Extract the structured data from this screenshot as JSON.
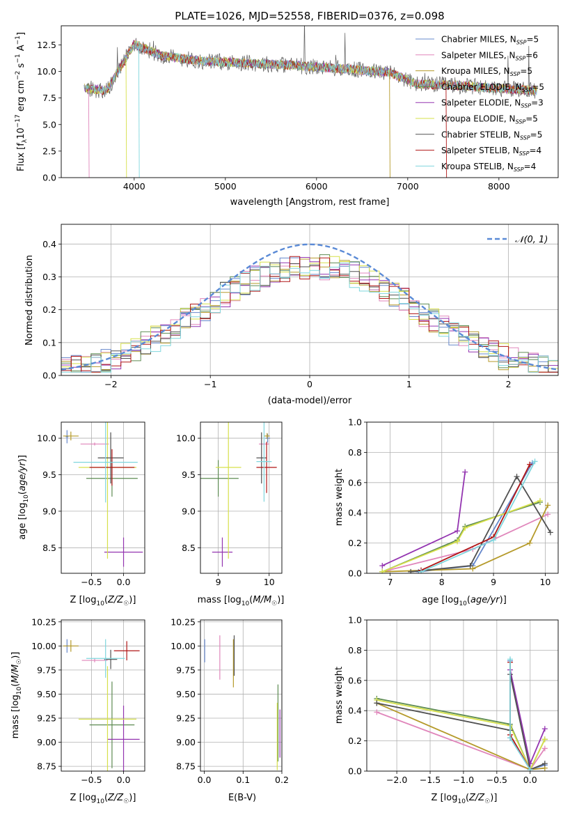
{
  "colors": [
    "#6688cc",
    "#e086bb",
    "#b59a2a",
    "#5d8b52",
    "#9334b0",
    "#d6e04a",
    "#505050",
    "#b01515",
    "#7fd6dd"
  ],
  "chart_data": [
    {
      "id": "spectrum",
      "type": "line",
      "title": "PLATE=1026, MJD=52558, FIBERID=0376, z=0.098",
      "xlabel": "wavelength [Angstrom, rest frame]",
      "ylabel": "Flux [f_λ 10^-17 erg cm^-2 s^-1 A^-1]",
      "xlim": [
        3200,
        8650
      ],
      "ylim": [
        0,
        14.3
      ],
      "xticks": [
        4000,
        5000,
        6000,
        7000,
        8000
      ],
      "yticks": [
        0.0,
        2.5,
        5.0,
        7.5,
        10.0,
        12.5
      ],
      "legend": [
        "Chabrier MILES, N_SSP=5",
        "Salpeter MILES, N_SSP=6",
        "Kroupa MILES, N_SSP=5",
        "Chabrier ELODIE, N_SSP=5",
        "Salpeter ELODIE, N_SSP=3",
        "Kroupa ELODIE, N_SSP=5",
        "Chabrier STELIB, N_SSP=5",
        "Salpeter STELIB, N_SSP=4",
        "Kroupa STELIB, N_SSP=4"
      ],
      "continuum": [
        [
          3450,
          8.4
        ],
        [
          3700,
          8.2
        ],
        [
          4000,
          12.6
        ],
        [
          4300,
          11.5
        ],
        [
          4700,
          11.0
        ],
        [
          5200,
          10.8
        ],
        [
          5700,
          10.6
        ],
        [
          6200,
          10.3
        ],
        [
          6800,
          9.9
        ],
        [
          7100,
          8.8
        ],
        [
          7500,
          8.7
        ],
        [
          8000,
          8.4
        ],
        [
          8400,
          8.2
        ]
      ]
    },
    {
      "id": "residuals",
      "type": "line",
      "xlabel": "(data-model)/error",
      "ylabel": "Normed distribution",
      "xlim": [
        -2.5,
        2.5
      ],
      "ylim": [
        0,
        0.46
      ],
      "xticks": [
        -2,
        -1,
        0,
        1,
        2
      ],
      "yticks": [
        0.0,
        0.1,
        0.2,
        0.3,
        0.4
      ],
      "legend": [
        "N(0,1)"
      ],
      "gaussian": {
        "mu": 0,
        "sigma": 1
      }
    },
    {
      "id": "age-vs-Z",
      "type": "scatter",
      "xlabel": "Z [log10(Z/Z☉)]",
      "ylabel": "age  [log10(age/yr)]",
      "xlim": [
        -0.97,
        0.33
      ],
      "ylim": [
        8.15,
        10.22
      ],
      "xticks": [
        -0.5,
        0.0
      ],
      "yticks": [
        8.5,
        9.0,
        9.5,
        10.0
      ],
      "points": [
        {
          "x": -0.88,
          "y": 10.02,
          "ex": 0.02,
          "ey": 0.09
        },
        {
          "x": -0.45,
          "y": 9.92,
          "ex": 0.22,
          "ey": 0.02
        },
        {
          "x": -0.82,
          "y": 10.03,
          "ex": 0.12,
          "ey": 0.06
        },
        {
          "x": -0.18,
          "y": 9.45,
          "ex": 0.4,
          "ey": 0.25
        },
        {
          "x": 0.0,
          "y": 8.44,
          "ex": 0.3,
          "ey": 0.2
        },
        {
          "x": -0.25,
          "y": 9.6,
          "ex": 0.45,
          "ey": 1.25
        },
        {
          "x": -0.2,
          "y": 9.73,
          "ex": 0.2,
          "ey": 0.35
        },
        {
          "x": -0.18,
          "y": 9.6,
          "ex": 0.35,
          "ey": 0.25
        },
        {
          "x": -0.28,
          "y": 9.67,
          "ex": 0.5,
          "ey": 0.55
        }
      ]
    },
    {
      "id": "age-vs-mass",
      "type": "scatter",
      "xlabel": "mass [log10(M/M☉)]",
      "ylabel": "",
      "xlim": [
        8.65,
        10.25
      ],
      "ylim": [
        8.15,
        10.22
      ],
      "xticks": [
        9,
        10
      ],
      "yticks": [
        8.5,
        9.0,
        9.5,
        10.0
      ],
      "points": [
        {
          "x": 9.97,
          "y": 10.0,
          "ex": 0.05,
          "ey": 0.06
        },
        {
          "x": 9.9,
          "y": 9.92,
          "ex": 0.1,
          "ey": 0.02
        },
        {
          "x": 9.96,
          "y": 10.03,
          "ex": 0.05,
          "ey": 0.04
        },
        {
          "x": 9.0,
          "y": 9.45,
          "ex": 0.4,
          "ey": 0.25
        },
        {
          "x": 9.08,
          "y": 8.44,
          "ex": 0.2,
          "ey": 0.2
        },
        {
          "x": 9.2,
          "y": 9.6,
          "ex": 0.25,
          "ey": 1.25
        },
        {
          "x": 9.85,
          "y": 9.73,
          "ex": 0.1,
          "ey": 0.35
        },
        {
          "x": 9.95,
          "y": 9.6,
          "ex": 0.2,
          "ey": 0.35
        },
        {
          "x": 9.9,
          "y": 9.68,
          "ex": 0.15,
          "ey": 0.55
        }
      ]
    },
    {
      "id": "massweight-vs-age",
      "type": "line",
      "xlabel": "age  [log10(age/yr)]",
      "ylabel": "mass weight",
      "xlim": [
        6.55,
        10.25
      ],
      "ylim": [
        0,
        1.0
      ],
      "xticks": [
        7,
        8,
        9,
        10
      ],
      "yticks": [
        0.0,
        0.2,
        0.4,
        0.6,
        0.8,
        1.0
      ],
      "series": [
        {
          "x": [
            7.55,
            8.6,
            9.75
          ],
          "y": [
            0.01,
            0.05,
            0.73
          ]
        },
        {
          "x": [
            6.85,
            8.6,
            10.05
          ],
          "y": [
            0.01,
            0.16,
            0.39
          ]
        },
        {
          "x": [
            6.85,
            8.6,
            9.7,
            10.05
          ],
          "y": [
            0.01,
            0.03,
            0.2,
            0.45
          ]
        },
        {
          "x": [
            6.85,
            8.3,
            8.45,
            9.9
          ],
          "y": [
            0.01,
            0.22,
            0.31,
            0.47
          ]
        },
        {
          "x": [
            6.85,
            8.3,
            8.45
          ],
          "y": [
            0.05,
            0.28,
            0.67
          ]
        },
        {
          "x": [
            6.85,
            8.3,
            8.45,
            9.9
          ],
          "y": [
            0.01,
            0.21,
            0.3,
            0.48
          ]
        },
        {
          "x": [
            7.4,
            8.55,
            9.45,
            10.1
          ],
          "y": [
            0.01,
            0.05,
            0.64,
            0.27
          ]
        },
        {
          "x": [
            7.6,
            9.0,
            9.7
          ],
          "y": [
            0.02,
            0.24,
            0.72
          ]
        },
        {
          "x": [
            7.6,
            9.0,
            9.8
          ],
          "y": [
            0.01,
            0.22,
            0.74
          ]
        }
      ]
    },
    {
      "id": "mass-vs-Z",
      "type": "scatter",
      "xlabel": "Z [log10(Z/Z☉)]",
      "ylabel": "mass [log10(M/M☉)]",
      "xlim": [
        -0.97,
        0.33
      ],
      "ylim": [
        8.7,
        10.27
      ],
      "xticks": [
        -0.5,
        0.0
      ],
      "yticks": [
        8.75,
        9.0,
        9.25,
        9.5,
        9.75,
        10.0,
        10.25
      ],
      "points": [
        {
          "x": -0.88,
          "y": 10.0,
          "ex": 0.02,
          "ey": 0.07
        },
        {
          "x": -0.45,
          "y": 9.85,
          "ex": 0.2,
          "ey": 0.02
        },
        {
          "x": -0.82,
          "y": 10.0,
          "ex": 0.12,
          "ey": 0.06
        },
        {
          "x": -0.18,
          "y": 9.18,
          "ex": 0.35,
          "ey": 0.45
        },
        {
          "x": 0.0,
          "y": 9.03,
          "ex": 0.25,
          "ey": 0.35
        },
        {
          "x": -0.25,
          "y": 9.24,
          "ex": 0.45,
          "ey": 0.55
        },
        {
          "x": -0.2,
          "y": 9.86,
          "ex": 0.1,
          "ey": 0.1
        },
        {
          "x": 0.05,
          "y": 9.95,
          "ex": 0.2,
          "ey": 0.1
        },
        {
          "x": -0.28,
          "y": 9.87,
          "ex": 0.3,
          "ey": 0.2
        }
      ]
    },
    {
      "id": "mass-vs-ebv",
      "type": "scatter",
      "xlabel": "E(B-V)",
      "ylabel": "",
      "xlim": [
        -0.01,
        0.2
      ],
      "ylim": [
        8.7,
        10.27
      ],
      "xticks": [
        0.0,
        0.1,
        0.2
      ],
      "yticks": [
        8.75,
        9.0,
        9.25,
        9.5,
        9.75,
        10.0,
        10.25
      ],
      "points": [
        {
          "x": 0.001,
          "y": 9.95,
          "ex": 0,
          "ey": 0.12
        },
        {
          "x": 0.04,
          "y": 9.88,
          "ex": 0,
          "ey": 0.23
        },
        {
          "x": 0.075,
          "y": 9.82,
          "ex": 0,
          "ey": 0.25
        },
        {
          "x": 0.19,
          "y": 9.2,
          "ex": 0,
          "ey": 0.4
        },
        {
          "x": 0.195,
          "y": 9.09,
          "ex": 0,
          "ey": 0.25
        },
        {
          "x": 0.188,
          "y": 9.06,
          "ex": 0,
          "ey": 0.35
        },
        {
          "x": 0.077,
          "y": 9.9,
          "ex": 0,
          "ey": 0.21
        }
      ]
    },
    {
      "id": "massweight-vs-Z",
      "type": "line",
      "xlabel": "Z [log10(Z/Z☉)]",
      "ylabel": "mass weight",
      "xlim": [
        -2.45,
        0.42
      ],
      "ylim": [
        0,
        1.0
      ],
      "xticks": [
        -2.0,
        -1.5,
        -1.0,
        -0.5,
        0.0
      ],
      "yticks": [
        0.0,
        0.2,
        0.4,
        0.6,
        0.8,
        1.0
      ],
      "series": [
        {
          "x": [
            -0.3,
            -0.3,
            0.0,
            0.22
          ],
          "y": [
            0.73,
            0.22,
            0.01,
            0.04
          ]
        },
        {
          "x": [
            -2.3,
            0.0,
            0.22
          ],
          "y": [
            0.39,
            0.01,
            0.15
          ]
        },
        {
          "x": [
            -2.3,
            0.0,
            0.22
          ],
          "y": [
            0.45,
            0.01,
            0.02
          ]
        },
        {
          "x": [
            -2.3,
            -0.3,
            0.0,
            0.22
          ],
          "y": [
            0.48,
            0.31,
            0.01,
            0.21
          ]
        },
        {
          "x": [
            -0.3,
            0.0,
            0.22
          ],
          "y": [
            0.67,
            0.05,
            0.28
          ]
        },
        {
          "x": [
            -2.3,
            -0.3,
            0.0,
            0.22
          ],
          "y": [
            0.47,
            0.3,
            0.01,
            0.21
          ]
        },
        {
          "x": [
            -2.3,
            -0.3,
            -0.3,
            0.0,
            0.22
          ],
          "y": [
            0.45,
            0.27,
            0.64,
            0.01,
            0.05
          ]
        },
        {
          "x": [
            -0.3,
            -0.3,
            0.0
          ],
          "y": [
            0.72,
            0.24,
            0.01
          ]
        },
        {
          "x": [
            -0.3,
            -0.3,
            0.0
          ],
          "y": [
            0.74,
            0.22,
            0.01
          ]
        }
      ]
    }
  ]
}
